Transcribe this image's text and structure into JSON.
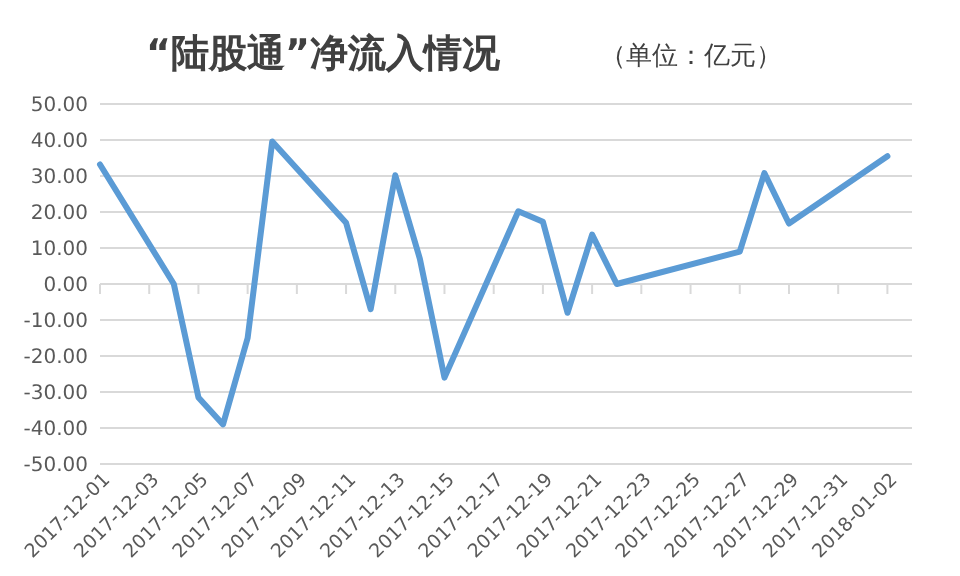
{
  "chart_data": {
    "type": "line",
    "title": "“陆股通”净流入情况",
    "subtitle": "（单位：亿元）",
    "x": [
      "2017-12-01",
      "2017-12-04",
      "2017-12-05",
      "2017-12-06",
      "2017-12-07",
      "2017-12-08",
      "2017-12-11",
      "2017-12-12",
      "2017-12-13",
      "2017-12-14",
      "2017-12-15",
      "2017-12-18",
      "2017-12-19",
      "2017-12-20",
      "2017-12-21",
      "2017-12-22",
      "2017-12-27",
      "2017-12-28",
      "2017-12-29",
      "2018-01-02"
    ],
    "series": [
      {
        "color": "#5b9bd5",
        "values": [
          33.2,
          0,
          -31.5,
          -39,
          -15,
          39.6,
          17,
          -7,
          30.2,
          7,
          -26,
          20.2,
          17.3,
          -8,
          13.7,
          0,
          9,
          30.8,
          16.8,
          35.5
        ]
      }
    ],
    "xlim": [
      "2017-12-01",
      "2018-01-03"
    ],
    "xticks": [
      "2017-12-01",
      "2017-12-03",
      "2017-12-05",
      "2017-12-07",
      "2017-12-09",
      "2017-12-11",
      "2017-12-13",
      "2017-12-15",
      "2017-12-17",
      "2017-12-19",
      "2017-12-21",
      "2017-12-23",
      "2017-12-25",
      "2017-12-27",
      "2017-12-29",
      "2017-12-31",
      "2018-01-02"
    ],
    "ylim": [
      -50,
      50
    ],
    "yticks": [
      {
        "value": -50,
        "label": "-50.00"
      },
      {
        "value": -40,
        "label": "-40.00"
      },
      {
        "value": -30,
        "label": "-30.00"
      },
      {
        "value": -20,
        "label": "-20.00"
      },
      {
        "value": -10,
        "label": "-10.00"
      },
      {
        "value": 0,
        "label": "0.00"
      },
      {
        "value": 10,
        "label": "10.00"
      },
      {
        "value": 20,
        "label": "20.00"
      },
      {
        "value": 30,
        "label": "30.00"
      },
      {
        "value": 40,
        "label": "40.00"
      },
      {
        "value": 50,
        "label": "50.00"
      }
    ],
    "grid": "y",
    "marker": "none",
    "line_style": "solid"
  }
}
